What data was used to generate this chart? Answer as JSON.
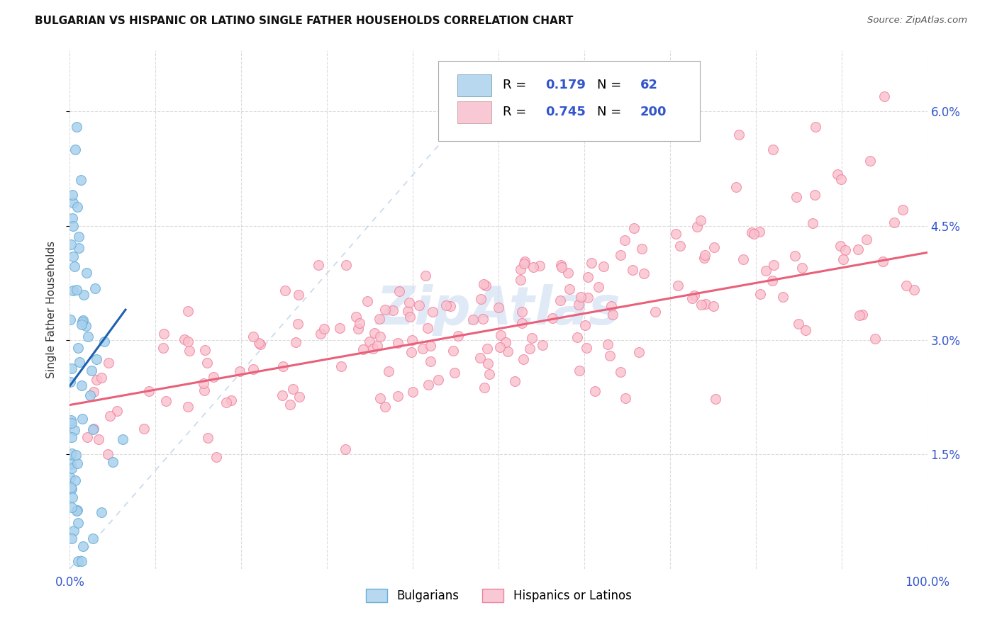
{
  "title": "BULGARIAN VS HISPANIC OR LATINO SINGLE FATHER HOUSEHOLDS CORRELATION CHART",
  "source": "Source: ZipAtlas.com",
  "ylabel": "Single Father Households",
  "yticks": [
    "1.5%",
    "3.0%",
    "4.5%",
    "6.0%"
  ],
  "yticks_vals": [
    0.015,
    0.03,
    0.045,
    0.06
  ],
  "watermark": "ZipAtlas",
  "blue_R": 0.179,
  "blue_N": 62,
  "pink_R": 0.745,
  "pink_N": 200,
  "blue_scatter_color": "#a8d0ed",
  "blue_edge_color": "#6aaed6",
  "pink_scatter_color": "#f9c0cc",
  "pink_edge_color": "#f080a0",
  "blue_line_color": "#2060b0",
  "pink_line_color": "#e8607a",
  "diagonal_color": "#b8d0e8",
  "legend_blue_fill": "#b8d8f0",
  "legend_pink_fill": "#f8c8d4",
  "title_color": "#111111",
  "value_color": "#3355cc",
  "label_color": "#3355cc",
  "watermark_color": "#c8d8f0",
  "xlim": [
    0.0,
    1.0
  ],
  "ylim": [
    0.0,
    0.068
  ],
  "blue_seed": 101,
  "pink_seed": 55,
  "pink_line_start_y": 0.022,
  "pink_line_end_y": 0.042,
  "blue_line_start_x": 0.0,
  "blue_line_start_y": 0.024,
  "blue_line_end_x": 0.065,
  "blue_line_end_y": 0.034
}
